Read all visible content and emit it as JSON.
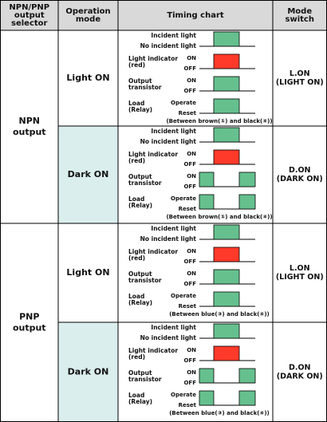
{
  "header": [
    [
      "NPN/PNP",
      "output",
      "selector"
    ],
    [
      "Operation",
      "mode"
    ],
    [
      "Timing chart"
    ],
    [
      "Mode",
      "switch"
    ]
  ],
  "groups": [
    {
      "label": [
        "NPN",
        "output"
      ],
      "rows": [
        {
          "mode": "Light ON",
          "signals": [
            {
              "high": "Incident light",
              "low": "No incident light"
            },
            {
              "label": [
                "Light indicator",
                "(red)"
              ],
              "high": "ON",
              "low": "OFF"
            },
            {
              "label": [
                "Output",
                "transistor"
              ],
              "high": "ON",
              "low": "OFF"
            },
            {
              "label": [
                "Load",
                "(Relay)"
              ],
              "high": "Operate",
              "low": "Reset"
            }
          ],
          "note": "(Between brown(①) and black(④))",
          "switch": [
            "L.ON",
            "(LIGHT ON)"
          ]
        },
        {
          "mode": "Dark ON",
          "signals": [
            {
              "high": "Incident light",
              "low": "No incident light"
            },
            {
              "label": [
                "Light indicator",
                "(red)"
              ],
              "high": "ON",
              "low": "OFF"
            },
            {
              "label": [
                "Output",
                "transistor"
              ],
              "high": "ON",
              "low": "OFF"
            },
            {
              "label": [
                "Load",
                "(Relay)"
              ],
              "high": "Operate",
              "low": "Reset"
            }
          ],
          "note": "(Between brown(①) and black(④))",
          "switch": [
            "D.ON",
            "(DARK ON)"
          ]
        }
      ]
    },
    {
      "label": [
        "PNP",
        "output"
      ],
      "rows": [
        {
          "mode": "Light ON",
          "signals": [
            {
              "high": "Incident light",
              "low": "No incident light"
            },
            {
              "label": [
                "Light indicator",
                "(red)"
              ],
              "high": "ON",
              "low": "OFF"
            },
            {
              "label": [
                "Output",
                "transistor"
              ],
              "high": "ON",
              "low": "OFF"
            },
            {
              "label": [
                "Load",
                "(Relay)"
              ],
              "high": "Operate",
              "low": "Reset"
            }
          ],
          "note": "(Between blue(③) and black(④))",
          "switch": [
            "L.ON",
            "(LIGHT ON)"
          ]
        },
        {
          "mode": "Dark ON",
          "signals": [
            {
              "high": "Incident light",
              "low": "No incident light"
            },
            {
              "label": [
                "Light indicator",
                "(red)"
              ],
              "high": "ON",
              "low": "OFF"
            },
            {
              "label": [
                "Output",
                "transistor"
              ],
              "high": "ON",
              "low": "OFF"
            },
            {
              "label": [
                "Load",
                "(Relay)"
              ],
              "high": "Operate",
              "low": "Reset"
            }
          ],
          "note": "(Between blue(③) and black(④))",
          "switch": [
            "D.ON",
            "(DARK ON)"
          ]
        }
      ]
    }
  ]
}
